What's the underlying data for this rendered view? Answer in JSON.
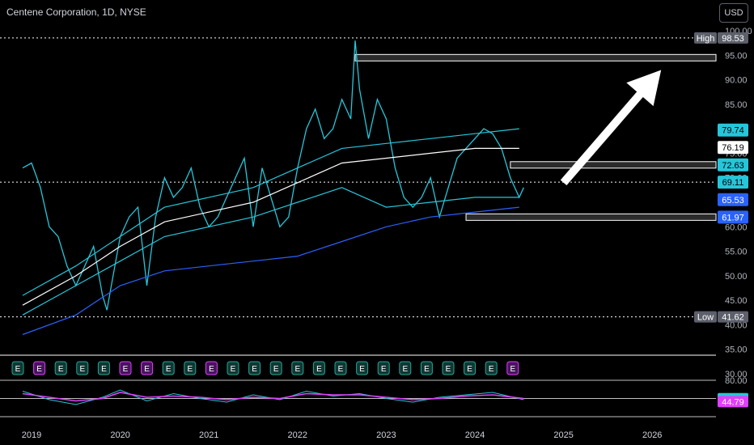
{
  "header": {
    "title": "Centene Corporation, 1D, NYSE",
    "currency_button": "USD"
  },
  "colors": {
    "price": "#26c6da",
    "band": "#26c6da",
    "mid": "#ffffff",
    "lower": "#2962ff",
    "rsi": "#26c6da",
    "rsi_ma": "#e040fb",
    "accent_e_green": "#1b5e55",
    "accent_e_purple": "#7b1fa2"
  },
  "chart_data": [
    {
      "type": "line",
      "title": "Centene Corporation, 1D, NYSE",
      "x_ticks": [
        "2019",
        "2020",
        "2021",
        "2022",
        "2023",
        "2024",
        "2025",
        "2026"
      ],
      "y_ticks": [
        "100.00",
        "95.00",
        "90.00",
        "85.00",
        "80.00",
        "75.00",
        "70.00",
        "65.00",
        "60.00",
        "55.00",
        "50.00",
        "45.00",
        "40.00",
        "35.00",
        "30.00"
      ],
      "ylim": [
        30,
        100
      ],
      "xlim": [
        2018.9,
        2026.6
      ],
      "series": [
        {
          "role": "price",
          "x": [
            2018.9,
            2019.0,
            2019.1,
            2019.2,
            2019.3,
            2019.4,
            2019.5,
            2019.6,
            2019.7,
            2019.8,
            2019.85,
            2019.9,
            2020.0,
            2020.1,
            2020.2,
            2020.25,
            2020.3,
            2020.4,
            2020.5,
            2020.6,
            2020.7,
            2020.8,
            2020.9,
            2021.0,
            2021.1,
            2021.2,
            2021.3,
            2021.4,
            2021.5,
            2021.6,
            2021.7,
            2021.8,
            2021.9,
            2022.0,
            2022.1,
            2022.2,
            2022.3,
            2022.4,
            2022.5,
            2022.6,
            2022.65,
            2022.7,
            2022.8,
            2022.9,
            2023.0,
            2023.1,
            2023.2,
            2023.3,
            2023.4,
            2023.5,
            2023.6,
            2023.7,
            2023.8,
            2023.9,
            2024.0,
            2024.1,
            2024.2,
            2024.3,
            2024.4,
            2024.5,
            2024.55
          ],
          "values": [
            72,
            73,
            68,
            60,
            58,
            52,
            48,
            52,
            56,
            46,
            43,
            48,
            58,
            62,
            64,
            56,
            48,
            62,
            70,
            66,
            68,
            72,
            64,
            60,
            62,
            66,
            70,
            74,
            60,
            72,
            66,
            60,
            62,
            72,
            80,
            84,
            78,
            80,
            86,
            82,
            98,
            88,
            78,
            86,
            82,
            72,
            66,
            64,
            66,
            70,
            62,
            68,
            74,
            76,
            78,
            80,
            79,
            76,
            70,
            66,
            68
          ]
        },
        {
          "role": "upper-band",
          "x": [
            2018.9,
            2019.5,
            2020.0,
            2020.5,
            2021.0,
            2021.5,
            2022.0,
            2022.5,
            2023.0,
            2023.5,
            2024.0,
            2024.5
          ],
          "values": [
            46,
            52,
            58,
            64,
            66,
            68,
            72,
            76,
            77,
            78,
            79,
            80
          ]
        },
        {
          "role": "middle-band",
          "x": [
            2018.9,
            2019.5,
            2020.0,
            2020.5,
            2021.0,
            2021.5,
            2022.0,
            2022.5,
            2023.0,
            2023.5,
            2024.0,
            2024.5
          ],
          "values": [
            44,
            50,
            56,
            61,
            63,
            65,
            69,
            73,
            74,
            75,
            76,
            76
          ]
        },
        {
          "role": "inner-lower-band",
          "x": [
            2018.9,
            2019.5,
            2020.0,
            2020.5,
            2021.0,
            2021.5,
            2022.0,
            2022.5,
            2023.0,
            2023.5,
            2024.0,
            2024.5
          ],
          "values": [
            42,
            48,
            53,
            58,
            60,
            62,
            65,
            68,
            64,
            65,
            66,
            66
          ]
        },
        {
          "role": "lower-band",
          "x": [
            2018.9,
            2019.5,
            2020.0,
            2020.5,
            2021.0,
            2021.5,
            2022.0,
            2022.5,
            2023.0,
            2023.5,
            2024.0,
            2024.5
          ],
          "values": [
            38,
            42,
            48,
            51,
            52,
            53,
            54,
            57,
            60,
            62,
            63,
            64
          ]
        }
      ],
      "levels": [
        {
          "label": "High",
          "value": 98.53,
          "text": "98.53",
          "style": "dotted"
        },
        {
          "label": "Low",
          "value": 41.62,
          "text": "41.62",
          "style": "dotted"
        },
        {
          "label": "",
          "value": 69.11,
          "text": "69.11",
          "style": "dotted"
        }
      ],
      "zones": [
        {
          "from_x": 2022.65,
          "value": 94.5,
          "text": ""
        },
        {
          "from_x": 2024.4,
          "value": 72.63,
          "text": "72.63"
        },
        {
          "from_x": 2023.9,
          "value": 61.97,
          "text": "61.97"
        }
      ],
      "value_labels": [
        {
          "text": "79.74",
          "value": 79.74,
          "bg": "#26c6da",
          "fg": "#000000"
        },
        {
          "text": "76.19",
          "value": 76.19,
          "bg": "#ffffff",
          "fg": "#000000"
        },
        {
          "text": "72.63",
          "value": 72.63,
          "bg": "#26c6da",
          "fg": "#000000"
        },
        {
          "text": "69.11",
          "value": 69.11,
          "bg": "#26c6da",
          "fg": "#000000"
        },
        {
          "text": "65.53",
          "value": 65.53,
          "bg": "#2962ff",
          "fg": "#ffffff"
        },
        {
          "text": "61.97",
          "value": 61.97,
          "bg": "#2962ff",
          "fg": "#ffffff"
        }
      ],
      "arrow": {
        "from": [
          2025.0,
          69
        ],
        "to": [
          2026.1,
          92
        ]
      },
      "earnings_markers": [
        "E",
        "E",
        "E",
        "E",
        "E",
        "E",
        "E",
        "E",
        "E",
        "E",
        "E",
        "E",
        "E",
        "E",
        "E",
        "E",
        "E",
        "E",
        "E",
        "E",
        "E",
        "E",
        "E",
        "E"
      ],
      "earnings_purple": [
        1,
        5,
        6,
        9,
        23
      ]
    },
    {
      "type": "line",
      "title": "",
      "y_ticks": [
        "80.00"
      ],
      "ylim": [
        20,
        80
      ],
      "series": [
        {
          "role": "rsi",
          "x": [
            2018.9,
            2019.2,
            2019.5,
            2019.8,
            2020.0,
            2020.3,
            2020.6,
            2020.9,
            2021.2,
            2021.5,
            2021.8,
            2022.1,
            2022.4,
            2022.7,
            2023.0,
            2023.3,
            2023.6,
            2023.9,
            2024.2,
            2024.55
          ],
          "values": [
            62,
            48,
            40,
            52,
            64,
            46,
            58,
            50,
            44,
            56,
            48,
            62,
            54,
            58,
            50,
            44,
            52,
            56,
            60,
            48
          ]
        },
        {
          "role": "rsi-ma",
          "x": [
            2018.9,
            2019.2,
            2019.5,
            2019.8,
            2020.0,
            2020.3,
            2020.6,
            2020.9,
            2021.2,
            2021.5,
            2021.8,
            2022.1,
            2022.4,
            2022.7,
            2023.0,
            2023.3,
            2023.6,
            2023.9,
            2024.2,
            2024.55
          ],
          "values": [
            58,
            52,
            46,
            50,
            60,
            52,
            54,
            52,
            48,
            52,
            50,
            58,
            56,
            56,
            52,
            48,
            50,
            54,
            56,
            50
          ]
        }
      ],
      "value_labels": [
        {
          "text": "49.65",
          "value": 49.65,
          "bg": "#26c6da",
          "fg": "#000000"
        },
        {
          "text": "44.79",
          "value": 44.79,
          "bg": "#e040fb",
          "fg": "#ffffff"
        }
      ]
    }
  ]
}
